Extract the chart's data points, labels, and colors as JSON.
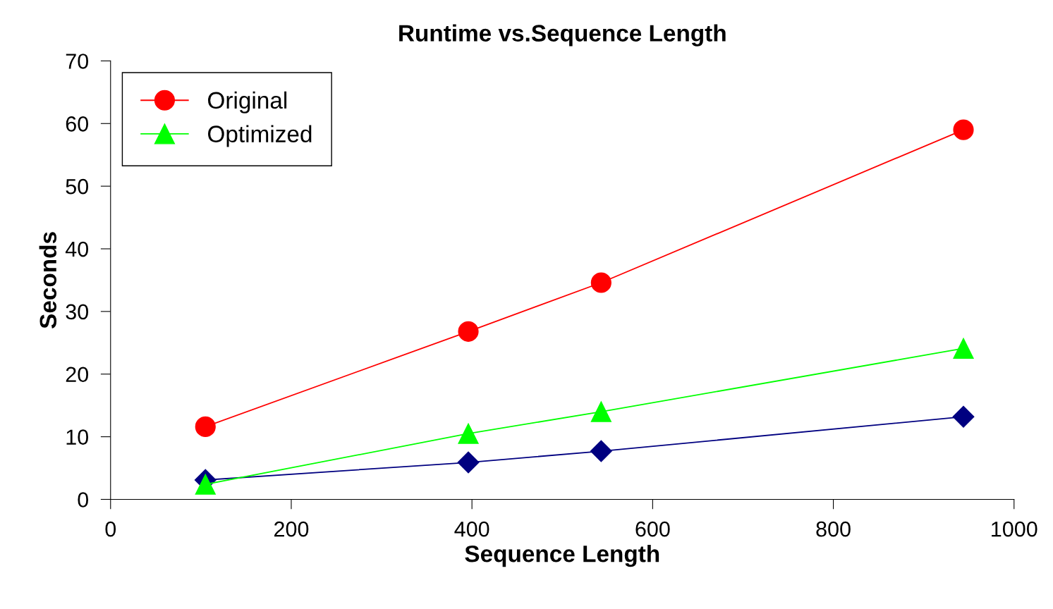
{
  "chart_data": {
    "type": "line",
    "title": "Runtime vs.Sequence Length",
    "xlabel": "Sequence Length",
    "ylabel": "Seconds",
    "x": [
      105,
      396,
      543,
      944
    ],
    "series": [
      {
        "name": "Original",
        "color": "#ff0000",
        "values": [
          11.6,
          26.8,
          34.6,
          59.0
        ],
        "marker": "circle"
      },
      {
        "name": "Optimized",
        "color": "#00ff00",
        "values": [
          2.4,
          10.5,
          14.0,
          24.1
        ],
        "marker": "triangle"
      },
      {
        "color": "#000080",
        "values": [
          3.1,
          5.9,
          7.7,
          13.2
        ],
        "marker": "diamond"
      }
    ],
    "xlim": [
      0,
      1000
    ],
    "xticks": [
      0,
      200,
      400,
      600,
      800,
      1000
    ],
    "ylim": [
      0,
      70
    ],
    "yticks": [
      0,
      10,
      20,
      30,
      40,
      50,
      60,
      70
    ],
    "grid": false,
    "legend": "top left"
  }
}
